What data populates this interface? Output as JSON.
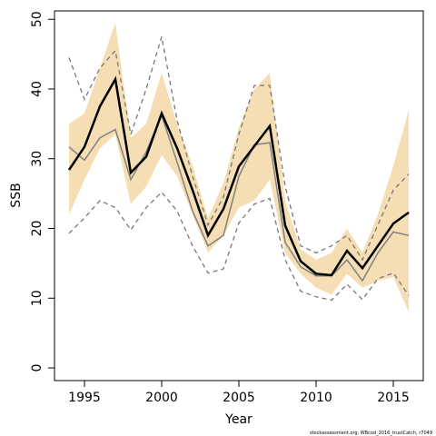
{
  "chart_data": {
    "type": "line",
    "xlabel": "Year",
    "ylabel": "SSB",
    "footnote": "stockassessment.org, WBcod_2016_trustCatch, r7049",
    "x": [
      1994,
      1995,
      1996,
      1997,
      1998,
      1999,
      2000,
      2001,
      2002,
      2003,
      2004,
      2005,
      2006,
      2007,
      2008,
      2009,
      2010,
      2011,
      2012,
      2013,
      2014,
      2015,
      2016
    ],
    "band": {
      "color": "#f5deb3",
      "upper": [
        35,
        36.5,
        43,
        49.5,
        33,
        35,
        42.3,
        35,
        29,
        21.5,
        26.5,
        34.5,
        40,
        42.3,
        24,
        17,
        15.5,
        16.5,
        20,
        16.5,
        22,
        29,
        37
      ],
      "lower": [
        22,
        27,
        31.5,
        33.5,
        23.5,
        26,
        30.5,
        27.5,
        22,
        16.5,
        19,
        23,
        24,
        27,
        16.5,
        13.5,
        11.5,
        10.5,
        13.5,
        11.5,
        12.5,
        13,
        8
      ]
    },
    "series": [
      {
        "color": "#777777",
        "dash": true,
        "values": [
          44.5,
          38.5,
          43,
          45.5,
          33.5,
          40,
          47.5,
          35.5,
          27.5,
          20.5,
          24.5,
          33.5,
          40.5,
          40.5,
          26,
          17.5,
          16.5,
          17.5,
          19,
          15.5,
          20.5,
          25.5,
          27.8
        ]
      },
      {
        "color": "#777777",
        "dash": true,
        "values": [
          19.3,
          21.5,
          24,
          23,
          19.8,
          23,
          25.2,
          22.5,
          17.5,
          13.6,
          14.2,
          20.8,
          23.5,
          24.3,
          15.5,
          11,
          10.2,
          9.7,
          12,
          9.8,
          12.8,
          13.6,
          10.4
        ]
      },
      {
        "color": "#808080",
        "dash": false,
        "width": 1.5,
        "values": [
          31.7,
          29.8,
          33,
          34.2,
          27,
          31,
          36.2,
          29.5,
          22.5,
          17.5,
          19,
          27.5,
          32,
          32.3,
          18,
          14.5,
          13.2,
          13.2,
          15.5,
          12.5,
          16.5,
          19.5,
          19
        ]
      },
      {
        "color": "#000000",
        "dash": false,
        "width": 2.5,
        "values": [
          28.4,
          31.7,
          37.5,
          41.4,
          28,
          30.3,
          36.5,
          31.5,
          25.5,
          19,
          22.8,
          28.9,
          31.8,
          34.7,
          20.4,
          15.3,
          13.5,
          13.3,
          16.8,
          14.3,
          17.5,
          20.7,
          22.3
        ]
      }
    ],
    "xlim": [
      1993.06,
      2016.94
    ],
    "ylim": [
      -1.82,
      51.2
    ],
    "xticks": [
      1995,
      2000,
      2005,
      2010,
      2015
    ],
    "yticks": [
      0,
      10,
      20,
      30,
      40,
      50
    ]
  }
}
